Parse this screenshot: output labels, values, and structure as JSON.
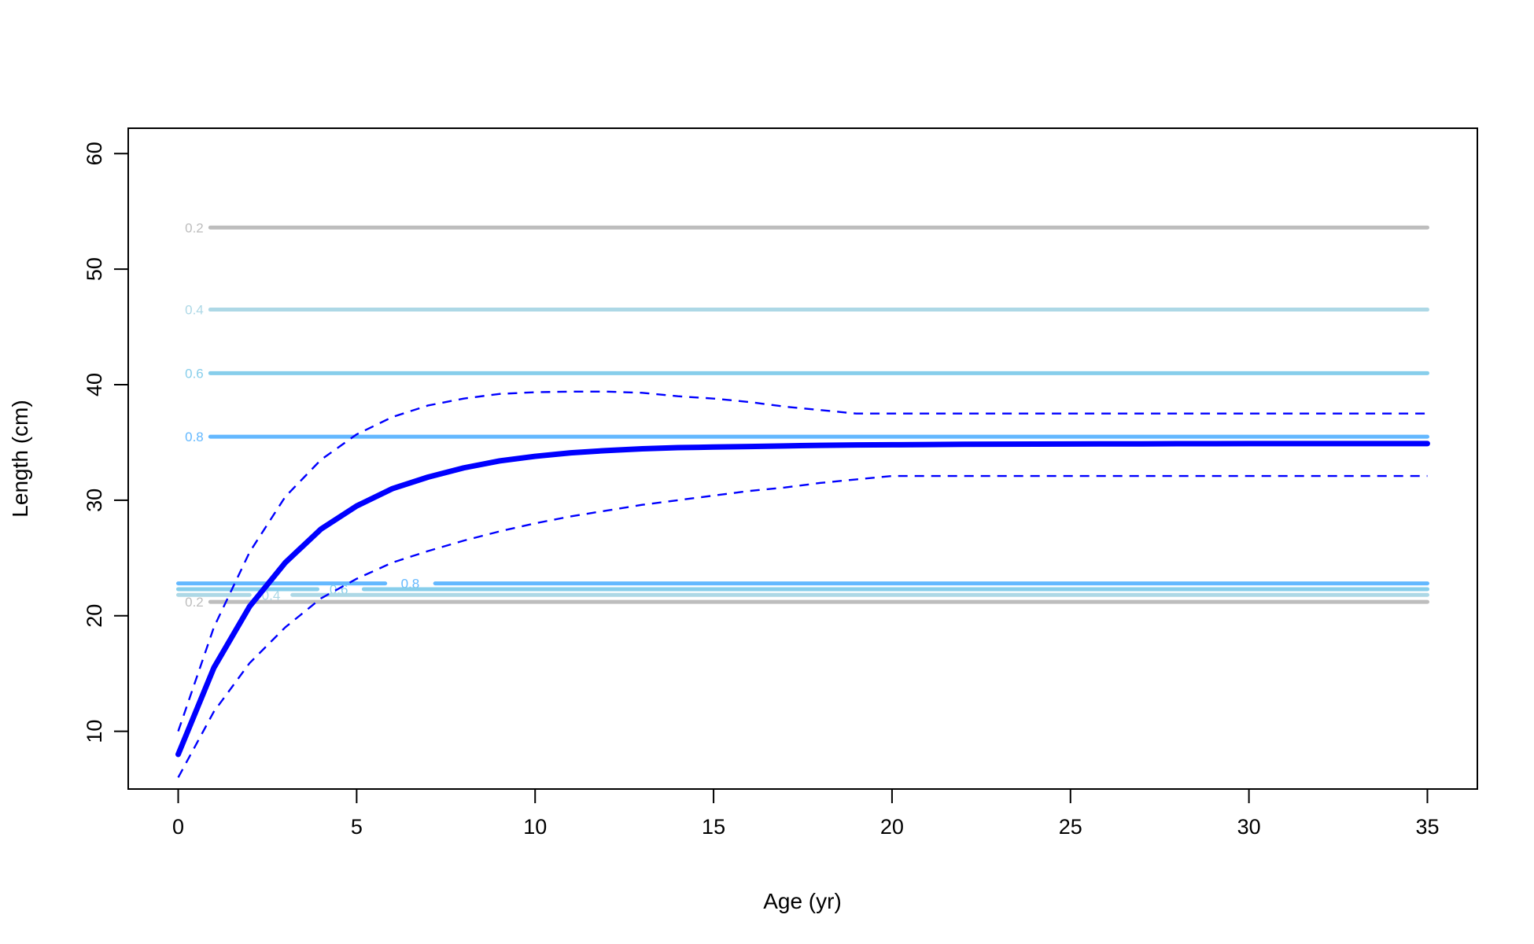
{
  "chart_data": {
    "type": "line",
    "title": "",
    "xlabel": "Age (yr)",
    "ylabel": "Length (cm)",
    "xlim": [
      -1.4,
      36.4
    ],
    "ylim": [
      5,
      62.2
    ],
    "xticks": [
      0,
      5,
      10,
      15,
      20,
      25,
      30,
      35
    ],
    "yticks": [
      10,
      20,
      30,
      40,
      50,
      60
    ],
    "grid": false,
    "legend": "none",
    "series": [
      {
        "role": "mean",
        "color": "#0000ff",
        "style": "solid-thick",
        "x": [
          0,
          1,
          2,
          3,
          4,
          5,
          6,
          7,
          8,
          9,
          10,
          11,
          12,
          13,
          14,
          15,
          16,
          17,
          18,
          19,
          20,
          21,
          22,
          23,
          24,
          25,
          26,
          27,
          28,
          29,
          30,
          31,
          32,
          33,
          34,
          35
        ],
        "y": [
          8.0,
          15.5,
          20.8,
          24.6,
          27.5,
          29.5,
          31.0,
          32.0,
          32.8,
          33.4,
          33.8,
          34.1,
          34.3,
          34.45,
          34.55,
          34.6,
          34.65,
          34.7,
          34.75,
          34.78,
          34.8,
          34.82,
          34.84,
          34.85,
          34.86,
          34.87,
          34.88,
          34.88,
          34.89,
          34.89,
          34.9,
          34.9,
          34.9,
          34.9,
          34.9,
          34.9
        ]
      },
      {
        "role": "upper",
        "color": "#0000ff",
        "style": "dashed",
        "x": [
          0,
          1,
          2,
          3,
          4,
          5,
          6,
          7,
          8,
          9,
          10,
          11,
          12,
          13,
          14,
          15,
          16,
          17,
          18,
          19,
          20,
          21,
          22,
          23,
          24,
          25,
          26,
          27,
          28,
          29,
          30,
          31,
          32,
          33,
          34,
          35
        ],
        "y": [
          10.0,
          19.0,
          25.5,
          30.3,
          33.5,
          35.7,
          37.2,
          38.2,
          38.8,
          39.2,
          39.35,
          39.4,
          39.4,
          39.3,
          39.0,
          38.8,
          38.5,
          38.1,
          37.8,
          37.5,
          37.5,
          37.5,
          37.5,
          37.5,
          37.5,
          37.5,
          37.5,
          37.5,
          37.5,
          37.5,
          37.5,
          37.5,
          37.5,
          37.5,
          37.5,
          37.5
        ]
      },
      {
        "role": "lower",
        "color": "#0000ff",
        "style": "dashed",
        "x": [
          0,
          1,
          2,
          3,
          4,
          5,
          6,
          7,
          8,
          9,
          10,
          11,
          12,
          13,
          14,
          15,
          16,
          17,
          18,
          19,
          20,
          21,
          22,
          23,
          24,
          25,
          26,
          27,
          28,
          29,
          30,
          31,
          32,
          33,
          34,
          35
        ],
        "y": [
          6.0,
          11.7,
          15.9,
          19.0,
          21.5,
          23.2,
          24.6,
          25.6,
          26.5,
          27.3,
          28.0,
          28.6,
          29.1,
          29.6,
          30.0,
          30.4,
          30.8,
          31.1,
          31.5,
          31.8,
          32.1,
          32.1,
          32.1,
          32.1,
          32.1,
          32.1,
          32.1,
          32.1,
          32.1,
          32.1,
          32.1,
          32.1,
          32.1,
          32.1,
          32.1,
          32.1
        ]
      }
    ],
    "contours": [
      {
        "label": "0.2",
        "y": 53.6,
        "x_start": 0.9,
        "x_end": 35,
        "color": "#bdbdbd",
        "label_x": 0.45
      },
      {
        "label": "0.4",
        "y": 46.5,
        "x_start": 0.9,
        "x_end": 35,
        "color": "#add8e6",
        "label_x": 0.45
      },
      {
        "label": "0.6",
        "y": 41.0,
        "x_start": 0.9,
        "x_end": 35,
        "color": "#87ceeb",
        "label_x": 0.45
      },
      {
        "label": "0.8",
        "y": 35.5,
        "x_start": 0.9,
        "x_end": 35,
        "color": "#63b8ff",
        "label_x": 0.45
      },
      {
        "label": "0.8",
        "y": 22.8,
        "x_start": 0,
        "x_end": 35,
        "color": "#63b8ff",
        "label_x": 6.5,
        "gap": [
          5.8,
          7.2
        ]
      },
      {
        "label": "0.6",
        "y": 22.3,
        "x_start": 0,
        "x_end": 35,
        "color": "#87ceeb",
        "label_x": 4.5,
        "gap": [
          3.9,
          5.2
        ]
      },
      {
        "label": "0.4",
        "y": 21.8,
        "x_start": 0,
        "x_end": 35,
        "color": "#add8e6",
        "label_x": 2.6,
        "gap": [
          2.0,
          3.2
        ]
      },
      {
        "label": "0.2",
        "y": 21.2,
        "x_start": 0.9,
        "x_end": 35,
        "color": "#bdbdbd",
        "label_x": 0.45
      }
    ]
  }
}
